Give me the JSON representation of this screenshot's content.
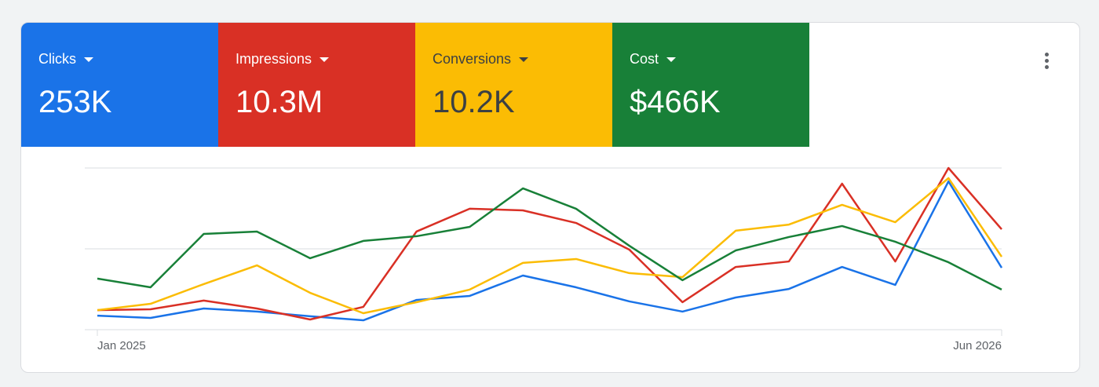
{
  "chart_data": {
    "type": "line",
    "categories": [
      "Jan 2025",
      null,
      null,
      null,
      null,
      null,
      null,
      null,
      null,
      null,
      null,
      null,
      null,
      null,
      null,
      null,
      null,
      "Jun 2026"
    ],
    "series": [
      {
        "name": "Clicks",
        "total": "253K",
        "color": "#1a73e8",
        "text_color": "#ffffff",
        "values": [
          8.7,
          7.3,
          13.1,
          11.2,
          8.3,
          5.8,
          18.4,
          20.9,
          33.5,
          26.2,
          17.5,
          11.2,
          19.9,
          25.2,
          38.8,
          27.7,
          91.7,
          38.3
        ]
      },
      {
        "name": "Impressions",
        "total": "10.3M",
        "color": "#d93025",
        "text_color": "#ffffff",
        "values": [
          12.1,
          12.6,
          18.0,
          13.1,
          6.3,
          14.1,
          60.7,
          74.8,
          73.8,
          66.0,
          49.5,
          17.0,
          38.8,
          42.2,
          90.3,
          42.2,
          100,
          62.1
        ]
      },
      {
        "name": "Conversions",
        "total": "10.2K",
        "color": "#fbbc04",
        "text_color": "#3c4043",
        "values": [
          12.1,
          16.0,
          28.2,
          39.8,
          22.8,
          10.2,
          17.0,
          24.8,
          41.3,
          43.7,
          35.0,
          32.5,
          61.2,
          65.0,
          77.2,
          66.5,
          93.7,
          45.1
        ]
      },
      {
        "name": "Cost",
        "total": "$466K",
        "color": "#188038",
        "text_color": "#ffffff",
        "values": [
          31.6,
          26.2,
          59.2,
          60.7,
          44.2,
          54.9,
          57.8,
          63.6,
          87.4,
          74.8,
          51.9,
          30.6,
          49.0,
          57.3,
          64.1,
          54.4,
          41.7,
          24.8
        ]
      }
    ],
    "ylim": [
      0,
      100
    ],
    "yticks": [
      0,
      50,
      100
    ],
    "ytick_labels": false,
    "grid": true
  }
}
